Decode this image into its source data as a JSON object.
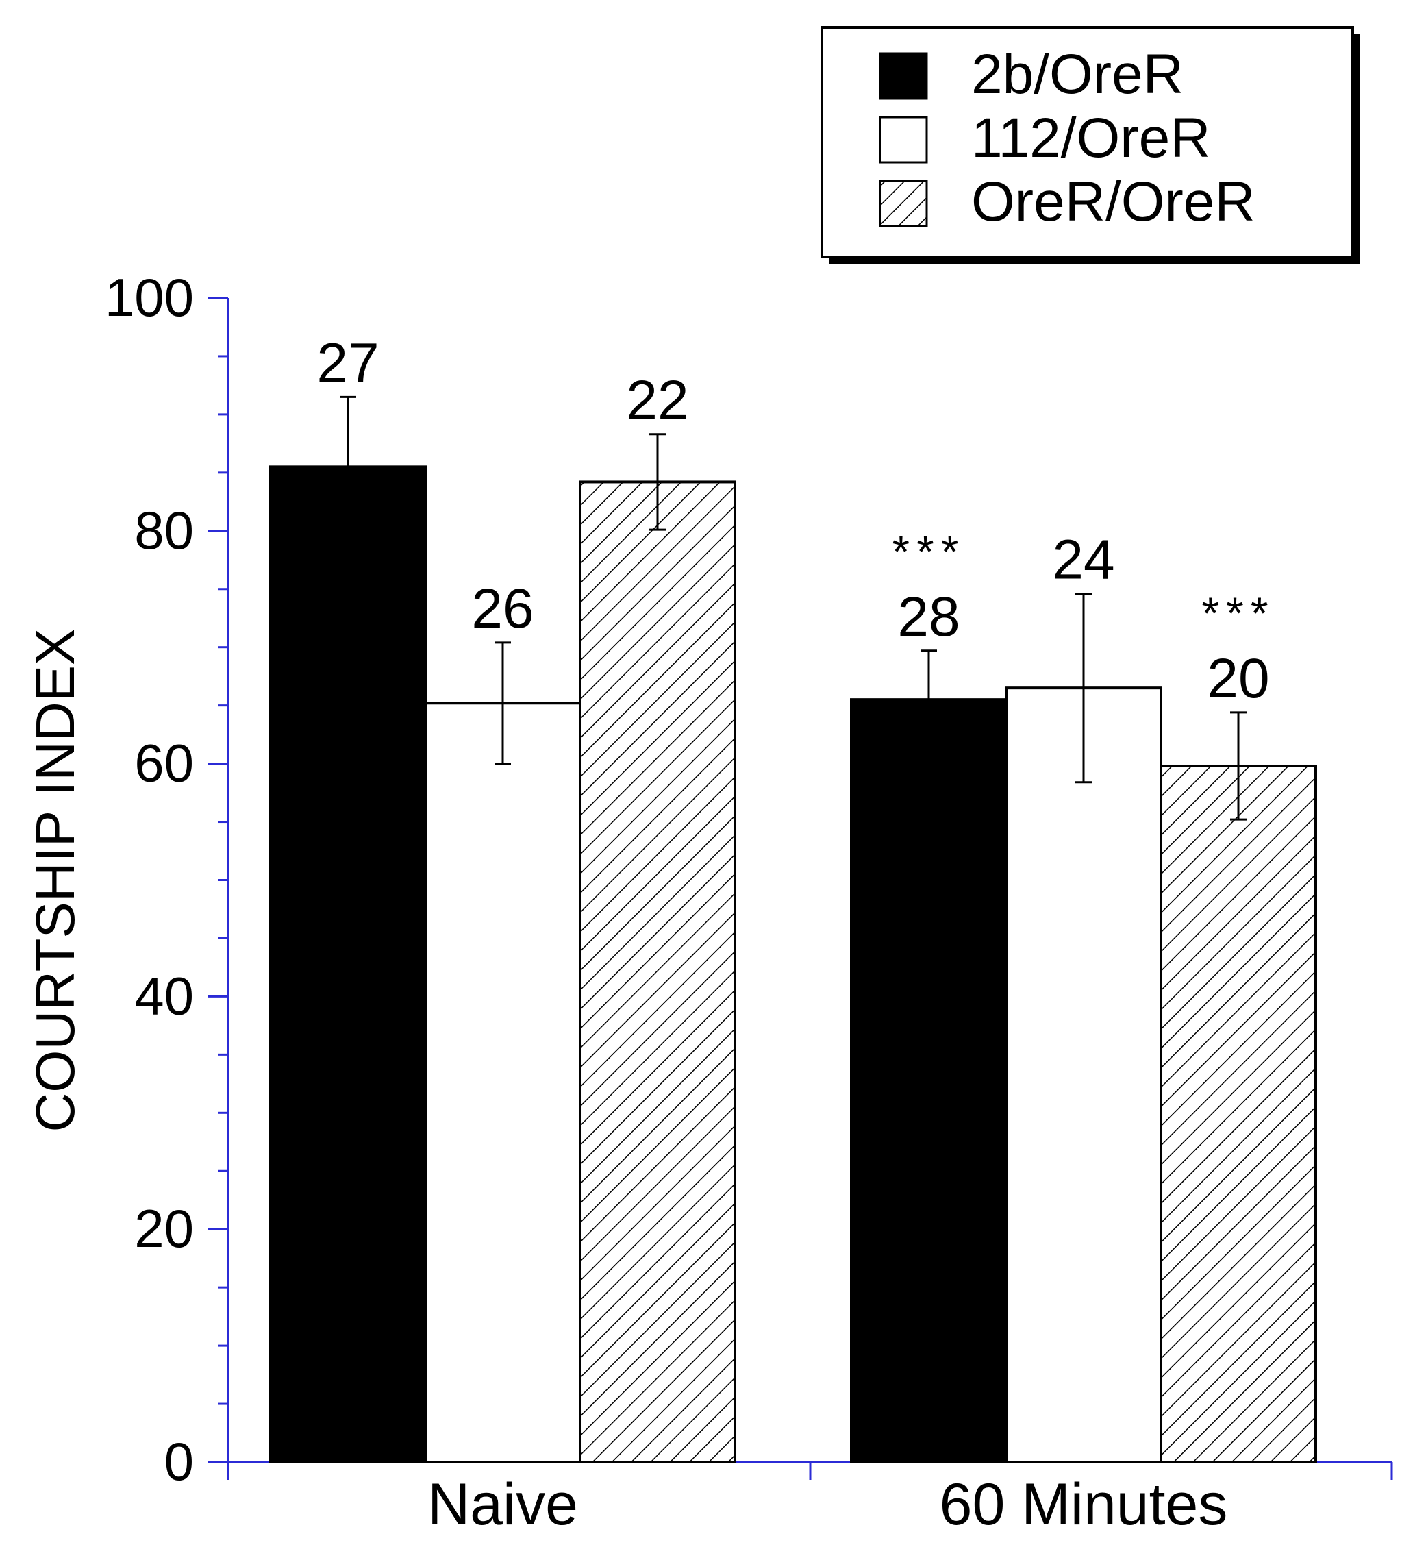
{
  "chart_data": {
    "type": "bar",
    "title": "",
    "xlabel": "",
    "ylabel": "COURTSHIP INDEX",
    "ylim": [
      0,
      100
    ],
    "yticks": [
      0,
      20,
      40,
      60,
      80,
      100
    ],
    "y_minor_step": 5,
    "categories": [
      "Naive",
      "60 Minutes"
    ],
    "series": [
      {
        "name": "2b/OreR",
        "fill": "solid-black",
        "values": [
          85.5,
          65.5
        ],
        "errors": [
          6,
          4.2
        ],
        "n_labels": [
          "27",
          "28"
        ],
        "significance": [
          "",
          "***"
        ]
      },
      {
        "name": "112/OreR",
        "fill": "white",
        "values": [
          65.2,
          66.5
        ],
        "errors": [
          5.2,
          8.1
        ],
        "n_labels": [
          "26",
          "24"
        ],
        "significance": [
          "",
          ""
        ]
      },
      {
        "name": "OreR/OreR",
        "fill": "diagonal-hatch",
        "values": [
          84.2,
          59.8
        ],
        "errors": [
          4.1,
          4.6
        ],
        "n_labels": [
          "22",
          "20"
        ],
        "significance": [
          "",
          "***"
        ]
      }
    ],
    "legend_position": "top-right",
    "axis_color": "#2b2bd6",
    "grid": false
  }
}
